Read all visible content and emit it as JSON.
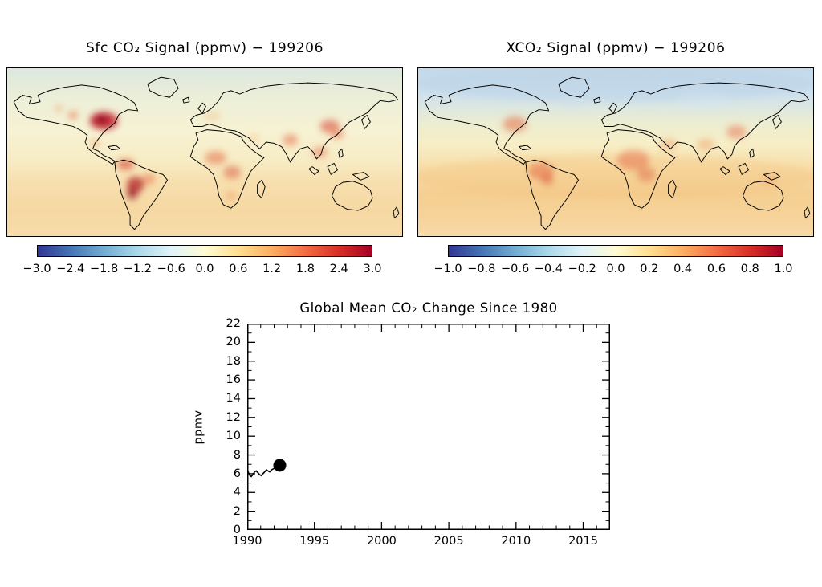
{
  "figure": {
    "background_color": "#ffffff",
    "line_color": "#000000"
  },
  "chart_data": [
    {
      "type": "heatmap",
      "title": "Sfc CO₂ Signal (ppmv) − 199206",
      "units": "ppmv",
      "projection": "global equirectangular map with coastlines",
      "colorbar_range": [
        -3.0,
        3.0
      ],
      "colorbar_ticks": [
        -3.0,
        -2.4,
        -1.8,
        -1.2,
        -0.6,
        0.0,
        0.6,
        1.2,
        1.8,
        2.4,
        3.0
      ],
      "palette": [
        "#313695",
        "#4575b4",
        "#74add1",
        "#abd9e9",
        "#e0f3f8",
        "#fffbd5",
        "#fee090",
        "#fdae61",
        "#f46d43",
        "#d73027",
        "#a50026"
      ],
      "hotspot_regions": [
        "Eastern North America (strong positive)",
        "Western Amazon / Bolivia (strong positive)",
        "Central Africa (positive)",
        "India (positive)",
        "Eastern China (positive)",
        "Europe (weak positive)",
        "High northern latitudes (weak negative)"
      ]
    },
    {
      "type": "heatmap",
      "title": "XCO₂ Signal (ppmv) − 199206",
      "units": "ppmv",
      "projection": "global equirectangular map with coastlines",
      "colorbar_range": [
        -1.0,
        1.0
      ],
      "colorbar_ticks": [
        -1.0,
        -0.8,
        -0.6,
        -0.4,
        -0.2,
        0.0,
        0.2,
        0.4,
        0.6,
        0.8,
        1.0
      ],
      "palette": [
        "#313695",
        "#4575b4",
        "#74add1",
        "#abd9e9",
        "#e0f3f8",
        "#fffbd5",
        "#fee090",
        "#fdae61",
        "#f46d43",
        "#d73027",
        "#a50026"
      ],
      "hotspot_regions": [
        "Eastern North America (positive)",
        "Northern South America (positive)",
        "Central Africa (positive)",
        "Arabian Peninsula (positive)",
        "East Asia (positive)",
        "Broad tropical band (weak positive)",
        "Arctic latitudes (weak negative)"
      ]
    },
    {
      "type": "line",
      "title": "Global Mean CO₂ Change Since 1980",
      "xlabel": "",
      "ylabel": "ppmv",
      "xlim": [
        1990,
        2017
      ],
      "ylim": [
        0,
        22
      ],
      "xticks": [
        1990,
        1995,
        2000,
        2005,
        2010,
        2015
      ],
      "yticks": [
        0,
        2,
        4,
        6,
        8,
        10,
        12,
        14,
        16,
        18,
        20,
        22
      ],
      "grid": false,
      "x": [
        1990.0,
        1990.1,
        1990.2,
        1990.3,
        1990.42,
        1990.55,
        1990.67,
        1990.8,
        1990.92,
        1991.05,
        1991.17,
        1991.3,
        1991.42,
        1991.55,
        1991.67,
        1991.8,
        1991.92,
        1992.05,
        1992.17,
        1992.3,
        1992.42
      ],
      "y": [
        6.4,
        6.1,
        5.8,
        5.7,
        5.9,
        6.2,
        6.3,
        6.1,
        5.9,
        5.8,
        6.0,
        6.2,
        6.4,
        6.3,
        6.2,
        6.4,
        6.5,
        6.6,
        6.7,
        6.8,
        6.9
      ],
      "end_marker": {
        "x": 1992.42,
        "y": 6.9,
        "style": "filled-circle",
        "color": "#000000"
      }
    }
  ]
}
